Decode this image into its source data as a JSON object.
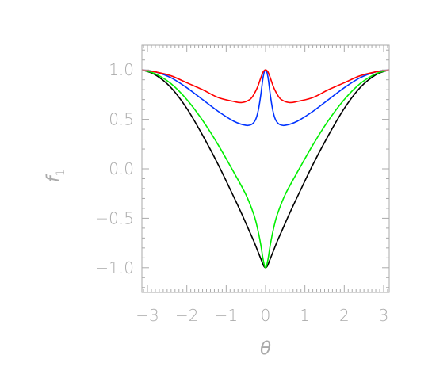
{
  "chart_data": {
    "type": "line",
    "title": "",
    "xlabel": "θ",
    "ylabel": "f",
    "ylabel_subscript": "1",
    "xlim": [
      -3.1416,
      3.1416
    ],
    "ylim": [
      -1.25,
      1.25
    ],
    "x_ticks": [
      -3,
      -2,
      -1,
      0,
      1,
      2,
      3
    ],
    "x_tick_labels": [
      "−3",
      "−2",
      "−1",
      "0",
      "1",
      "2",
      "3"
    ],
    "y_ticks": [
      1.0,
      0.5,
      0.0,
      -0.5,
      -1.0
    ],
    "y_tick_labels": [
      "1.0",
      "0.5",
      "0.0",
      "−0.5",
      "−1.0"
    ],
    "grid": false,
    "legend": false,
    "axis_color": "#aaaaaa",
    "series": [
      {
        "color": "#000000",
        "x": [
          -3.14,
          -2.8,
          -2.4,
          -2.0,
          -1.6,
          -1.2,
          -0.8,
          -0.6,
          -0.4,
          -0.3,
          -0.2,
          -0.15,
          -0.1,
          -0.05,
          0.0,
          0.05,
          0.1,
          0.15,
          0.2,
          0.3,
          0.4,
          0.6,
          0.8,
          1.2,
          1.6,
          2.0,
          2.4,
          2.8,
          3.14
        ],
        "y": [
          1.0,
          0.95,
          0.82,
          0.61,
          0.34,
          0.04,
          -0.29,
          -0.46,
          -0.64,
          -0.73,
          -0.83,
          -0.88,
          -0.93,
          -0.98,
          -1.0,
          -0.98,
          -0.93,
          -0.88,
          -0.83,
          -0.73,
          -0.64,
          -0.46,
          -0.29,
          0.04,
          0.34,
          0.61,
          0.82,
          0.95,
          1.0
        ]
      },
      {
        "color": "#00ee00",
        "x": [
          -3.14,
          -2.8,
          -2.4,
          -2.0,
          -1.6,
          -1.2,
          -0.8,
          -0.5,
          -0.3,
          -0.2,
          -0.12,
          -0.06,
          0.0,
          0.06,
          0.12,
          0.2,
          0.3,
          0.5,
          0.8,
          1.2,
          1.6,
          2.0,
          2.4,
          2.8,
          3.14
        ],
        "y": [
          1.0,
          0.96,
          0.86,
          0.7,
          0.49,
          0.24,
          -0.04,
          -0.26,
          -0.46,
          -0.61,
          -0.77,
          -0.92,
          -1.0,
          -0.92,
          -0.77,
          -0.61,
          -0.46,
          -0.26,
          -0.04,
          0.24,
          0.49,
          0.7,
          0.86,
          0.96,
          1.0
        ]
      },
      {
        "color": "#0033ff",
        "x": [
          -3.14,
          -2.8,
          -2.4,
          -2.0,
          -1.6,
          -1.2,
          -0.8,
          -0.5,
          -0.35,
          -0.25,
          -0.18,
          -0.12,
          -0.06,
          0.0,
          0.06,
          0.12,
          0.18,
          0.25,
          0.35,
          0.5,
          0.8,
          1.2,
          1.6,
          2.0,
          2.4,
          2.8,
          3.14
        ],
        "y": [
          1.0,
          0.98,
          0.92,
          0.82,
          0.7,
          0.58,
          0.48,
          0.44,
          0.45,
          0.5,
          0.6,
          0.75,
          0.93,
          1.0,
          0.93,
          0.75,
          0.6,
          0.5,
          0.45,
          0.44,
          0.48,
          0.58,
          0.7,
          0.82,
          0.92,
          0.98,
          1.0
        ]
      },
      {
        "color": "#ff0000",
        "x": [
          -3.14,
          -2.8,
          -2.4,
          -2.0,
          -1.6,
          -1.2,
          -0.8,
          -0.6,
          -0.4,
          -0.3,
          -0.2,
          -0.12,
          -0.06,
          0.0,
          0.06,
          0.12,
          0.2,
          0.3,
          0.4,
          0.6,
          0.8,
          1.2,
          1.6,
          2.0,
          2.4,
          2.8,
          3.14
        ],
        "y": [
          1.0,
          0.98,
          0.94,
          0.87,
          0.8,
          0.72,
          0.68,
          0.67,
          0.7,
          0.75,
          0.83,
          0.92,
          0.98,
          1.0,
          0.98,
          0.92,
          0.83,
          0.75,
          0.7,
          0.67,
          0.68,
          0.72,
          0.8,
          0.87,
          0.94,
          0.98,
          1.0
        ]
      }
    ]
  }
}
